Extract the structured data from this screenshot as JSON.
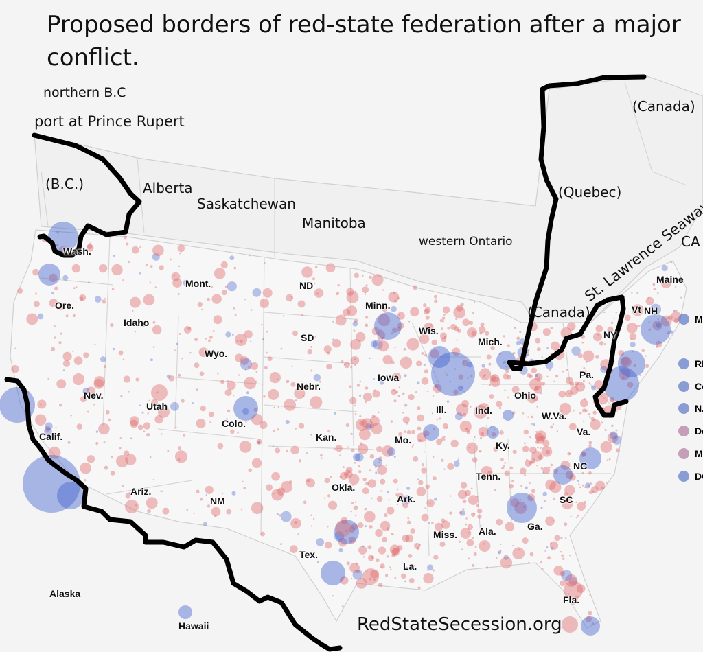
{
  "title": "Proposed borders of red-state federation after a major conflict.",
  "website": "RedStateSecession.org",
  "annotations": {
    "northern_bc": "northern B.C",
    "prince_rupert": "port at Prince Rupert",
    "bc": "(B.C.)",
    "alberta": "Alberta",
    "saskatchewan": "Saskatchewan",
    "manitoba": "Manitoba",
    "western_ontario": "western Ontario",
    "canada_ne": "(Canada)",
    "quebec": "(Quebec)",
    "canada_lakes": "(Canada)",
    "seaway": "St. Lawrence Seaway",
    "ca_cut": "CA"
  },
  "states": [
    "Wash.",
    "Ore.",
    "Calif.",
    "Nev.",
    "Idaho",
    "Mont.",
    "Wyo.",
    "Utah",
    "Ariz.",
    "Colo.",
    "NM",
    "ND",
    "SD",
    "Nebr.",
    "Kan.",
    "Okla.",
    "Tex.",
    "Minn.",
    "Iowa",
    "Mo.",
    "Ark.",
    "La.",
    "Wis.",
    "Ill.",
    "Mich.",
    "Ind.",
    "Ohio",
    "Ky.",
    "Tenn.",
    "Miss.",
    "Ala.",
    "Ga.",
    "Fla.",
    "SC",
    "NC",
    "Va.",
    "W.Va.",
    "Pa.",
    "NY",
    "Vt",
    "NH",
    "Maine",
    "Alaska",
    "Hawaii"
  ],
  "legend": [
    {
      "label": "M",
      "color": "#6f86cc"
    },
    {
      "label": "RI",
      "color": "#6f86cc"
    },
    {
      "label": "Co",
      "color": "#6f86cc"
    },
    {
      "label": "N.",
      "color": "#6f86cc"
    },
    {
      "label": "De",
      "color": "#b98aa8"
    },
    {
      "label": "M",
      "color": "#b98aa8"
    },
    {
      "label": "DC",
      "color": "#6f86cc"
    }
  ],
  "colors": {
    "republican": "#e07070",
    "democratic": "#3b5ccc",
    "border": "#000000",
    "background": "#f4f4f4"
  }
}
